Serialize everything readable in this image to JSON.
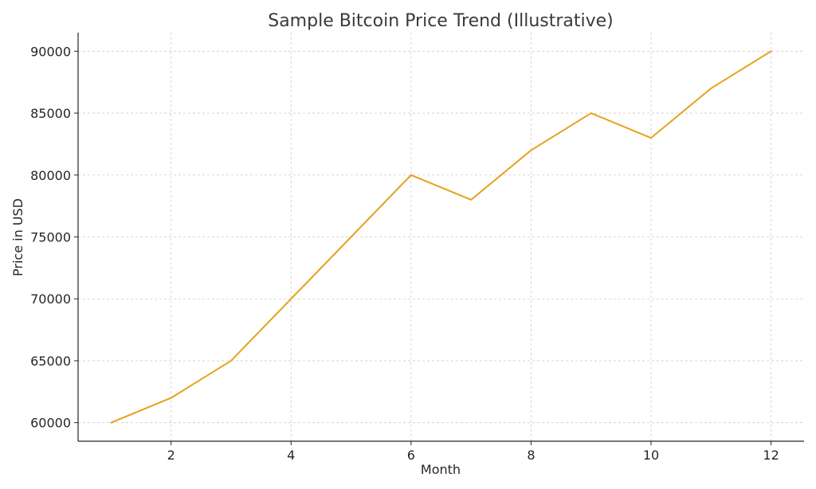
{
  "chart_data": {
    "type": "line",
    "title": "Sample Bitcoin Price Trend (Illustrative)",
    "xlabel": "Month",
    "ylabel": "Price in USD",
    "x": [
      1,
      2,
      3,
      4,
      5,
      6,
      7,
      8,
      9,
      10,
      11,
      12
    ],
    "series": [
      {
        "values": [
          60000,
          62000,
          65000,
          70000,
          75000,
          80000,
          78000,
          82000,
          85000,
          83000,
          87000,
          90000
        ]
      }
    ],
    "xlim": [
      0.45,
      12.55
    ],
    "ylim": [
      58500,
      91500
    ],
    "xticks": [
      2,
      4,
      6,
      8,
      10,
      12
    ],
    "yticks": [
      60000,
      65000,
      70000,
      75000,
      80000,
      85000,
      90000
    ],
    "grid": true,
    "line_color": "#e5a11c"
  }
}
